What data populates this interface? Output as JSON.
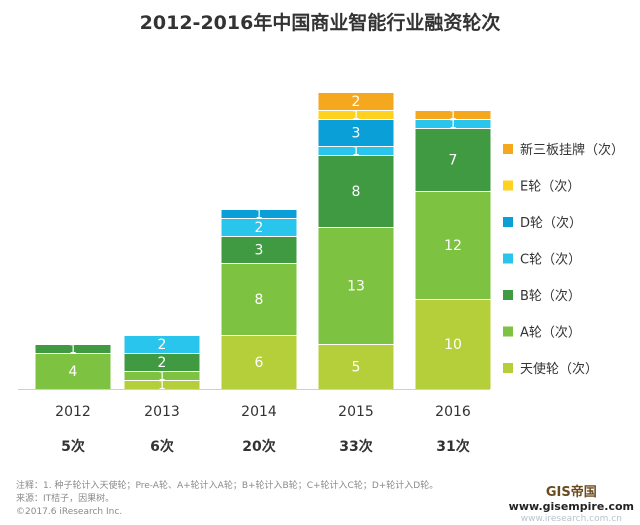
{
  "chart_data": {
    "type": "bar",
    "stacked": true,
    "title": "2012-2016年中国商业智能行业融资轮次",
    "categories": [
      "2012",
      "2013",
      "2014",
      "2015",
      "2016"
    ],
    "totals": [
      "5次",
      "6次",
      "20次",
      "33次",
      "31次"
    ],
    "series": [
      {
        "name": "天使轮（次）",
        "color": "#b5cf3a",
        "values": [
          0,
          1,
          6,
          5,
          10
        ]
      },
      {
        "name": "A轮（次）",
        "color": "#7ec241",
        "values": [
          4,
          1,
          8,
          13,
          12
        ]
      },
      {
        "name": "B轮（次）",
        "color": "#3f9a41",
        "values": [
          1,
          2,
          3,
          8,
          7
        ]
      },
      {
        "name": "C轮（次）",
        "color": "#29c5ec",
        "values": [
          0,
          2,
          2,
          1,
          1
        ]
      },
      {
        "name": "D轮（次）",
        "color": "#0b9fd8",
        "values": [
          0,
          0,
          1,
          3,
          0
        ]
      },
      {
        "name": "E轮（次）",
        "color": "#ffd21f",
        "values": [
          0,
          0,
          0,
          1,
          0
        ]
      },
      {
        "name": "新三板挂牌（次）",
        "color": "#f5a81e",
        "values": [
          0,
          0,
          0,
          2,
          1
        ]
      }
    ],
    "legend_position": "right",
    "grid": false
  },
  "footnotes": {
    "note": "注释：1. 种子轮计入天使轮；Pre-A轮、A+轮计入A轮；B+轮计入B轮；C+轮计入C轮；D+轮计入D轮。",
    "source": "来源：IT桔子，因果树。",
    "copyright": "©2017.6 iResearch Inc."
  },
  "watermark": {
    "brand": "GIS帝国",
    "url": "www.gisempire.com",
    "faint": "www.iresearch.com.cn"
  }
}
